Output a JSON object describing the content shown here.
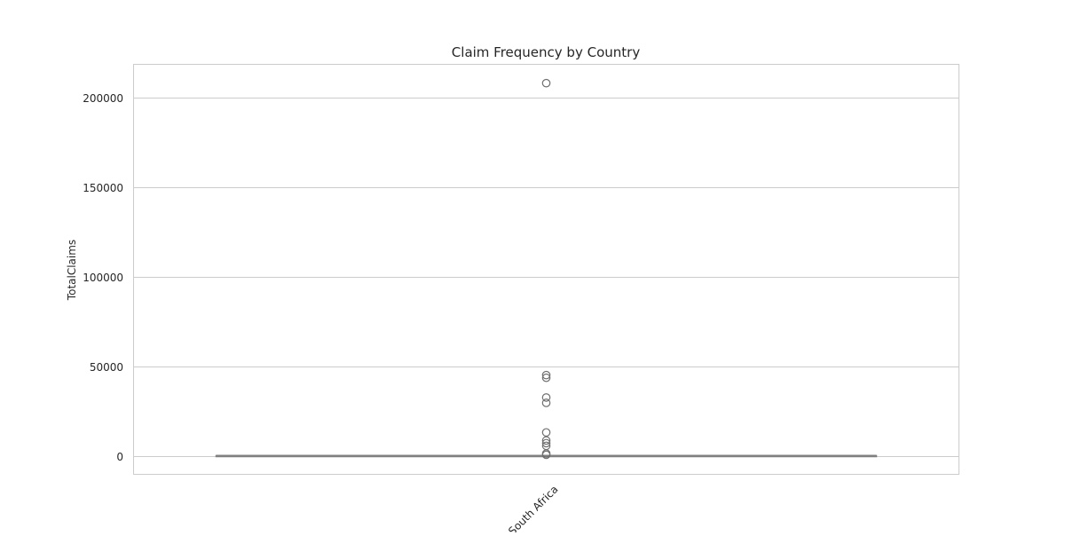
{
  "chart_data": {
    "type": "box",
    "title": "Claim Frequency by Country",
    "xlabel": "",
    "ylabel": "TotalClaims",
    "categories": [
      "South Africa"
    ],
    "ylim": [
      -10400,
      218500
    ],
    "yticks": [
      0,
      50000,
      100000,
      150000,
      200000
    ],
    "grid": true,
    "box": {
      "q1": 0,
      "median": 0,
      "q3": 0,
      "whisker_low": 0,
      "whisker_high": 0
    },
    "outliers": [
      208000,
      45000,
      43500,
      32500,
      29500,
      13000,
      8500,
      7000,
      5500,
      1200,
      500
    ],
    "colors": {
      "grid": "#cccccc",
      "box": "#808080",
      "outlier": "#6e6e6e",
      "spine": "#cccccc"
    }
  }
}
